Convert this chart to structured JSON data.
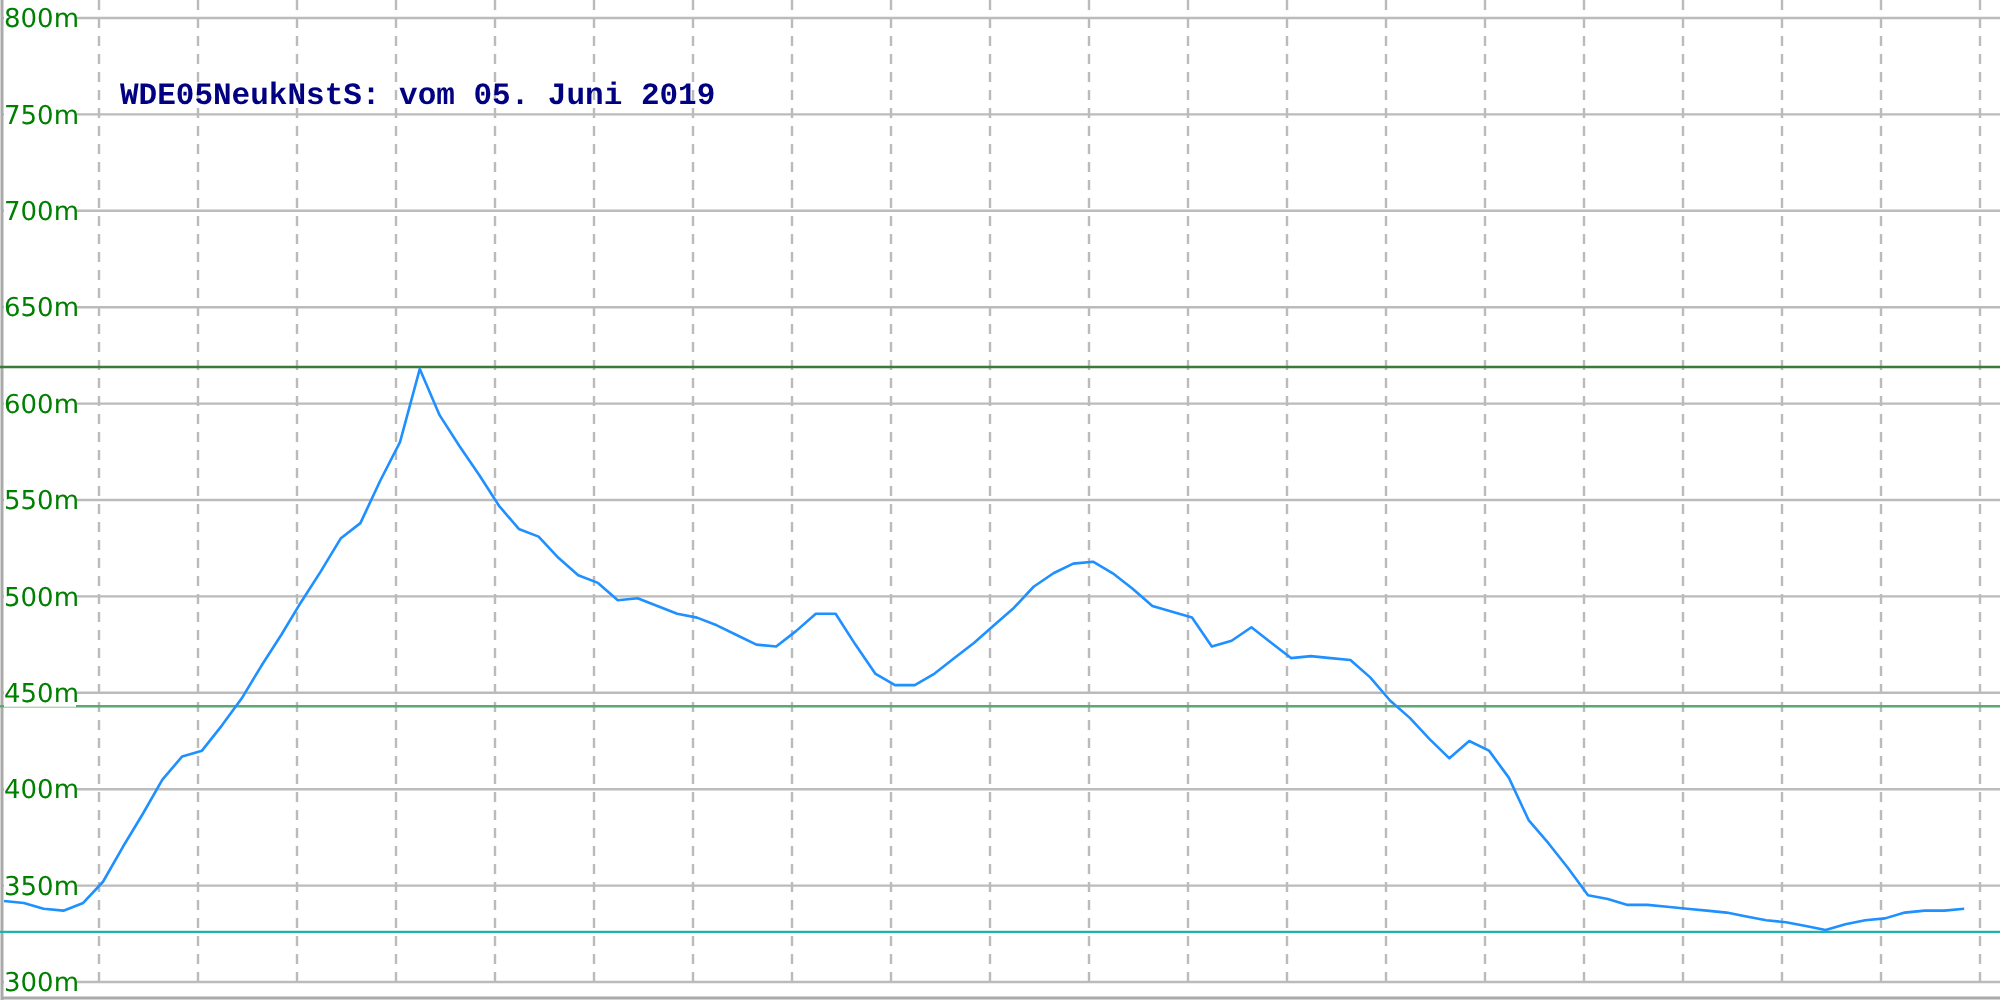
{
  "chart_data": {
    "type": "line",
    "title": "WDE05NeukNstS: vom 05. Juni 2019",
    "categories": [
      null,
      null,
      null,
      null,
      null,
      null,
      null,
      null,
      null,
      null,
      null,
      null,
      null,
      null,
      null,
      null,
      null,
      null,
      null,
      null,
      null,
      null,
      null,
      null,
      null,
      null,
      null,
      null,
      null,
      null,
      null,
      null,
      null,
      null,
      null,
      null,
      null,
      null,
      null,
      null,
      null,
      null,
      null,
      null,
      null,
      null,
      null,
      null,
      null,
      null,
      null,
      null,
      null,
      null,
      null,
      null,
      null,
      null,
      null,
      null,
      null,
      null,
      null,
      null,
      null,
      null,
      null,
      null,
      null,
      null,
      null,
      null,
      null,
      null,
      null,
      null,
      null,
      null,
      null,
      null,
      null,
      null,
      null,
      null,
      null,
      null,
      null,
      null,
      null,
      null,
      null,
      null,
      null,
      null,
      null,
      null,
      null,
      null,
      null,
      null
    ],
    "series": [
      {
        "color": "#1e90ff",
        "values": [
          342,
          341,
          338,
          337,
          341,
          352,
          370,
          387,
          405,
          417,
          420,
          433,
          447,
          464,
          480,
          497,
          513,
          530,
          538,
          560,
          580,
          618,
          594,
          578,
          563,
          547,
          535,
          531,
          520,
          511,
          507,
          498,
          499,
          495,
          491,
          489,
          485,
          480,
          475,
          474,
          482,
          491,
          491,
          475,
          460,
          454,
          454,
          460,
          468,
          476,
          485,
          494,
          505,
          512,
          517,
          518,
          512,
          504,
          495,
          492,
          489,
          474,
          477,
          484,
          476,
          468,
          469,
          468,
          467,
          458,
          446,
          437,
          426,
          416,
          425,
          420,
          406,
          384,
          372,
          359,
          345,
          343,
          340,
          340,
          339,
          338,
          337,
          336,
          334,
          332,
          331,
          329,
          327,
          330,
          332,
          333,
          336,
          337,
          337,
          338
        ]
      }
    ],
    "ylim": [
      300,
      800
    ],
    "yticks": [
      {
        "value": 300,
        "label": "300m"
      },
      {
        "value": 350,
        "label": "350m"
      },
      {
        "value": 400,
        "label": "400m"
      },
      {
        "value": 450,
        "label": "450m"
      },
      {
        "value": 500,
        "label": "500m"
      },
      {
        "value": 550,
        "label": "550m"
      },
      {
        "value": 600,
        "label": "600m"
      },
      {
        "value": 650,
        "label": "650m"
      },
      {
        "value": 700,
        "label": "700m"
      },
      {
        "value": 750,
        "label": "750m"
      },
      {
        "value": 800,
        "label": "800m"
      }
    ],
    "grid": true,
    "tick_labels": "y",
    "ref_lines": [
      {
        "axis": "y",
        "value": 619,
        "color": "#3a7a3a"
      },
      {
        "axis": "y",
        "value": 443,
        "color": "#5aa872"
      },
      {
        "axis": "y",
        "value": 326,
        "color": "#20b2aa"
      }
    ]
  }
}
